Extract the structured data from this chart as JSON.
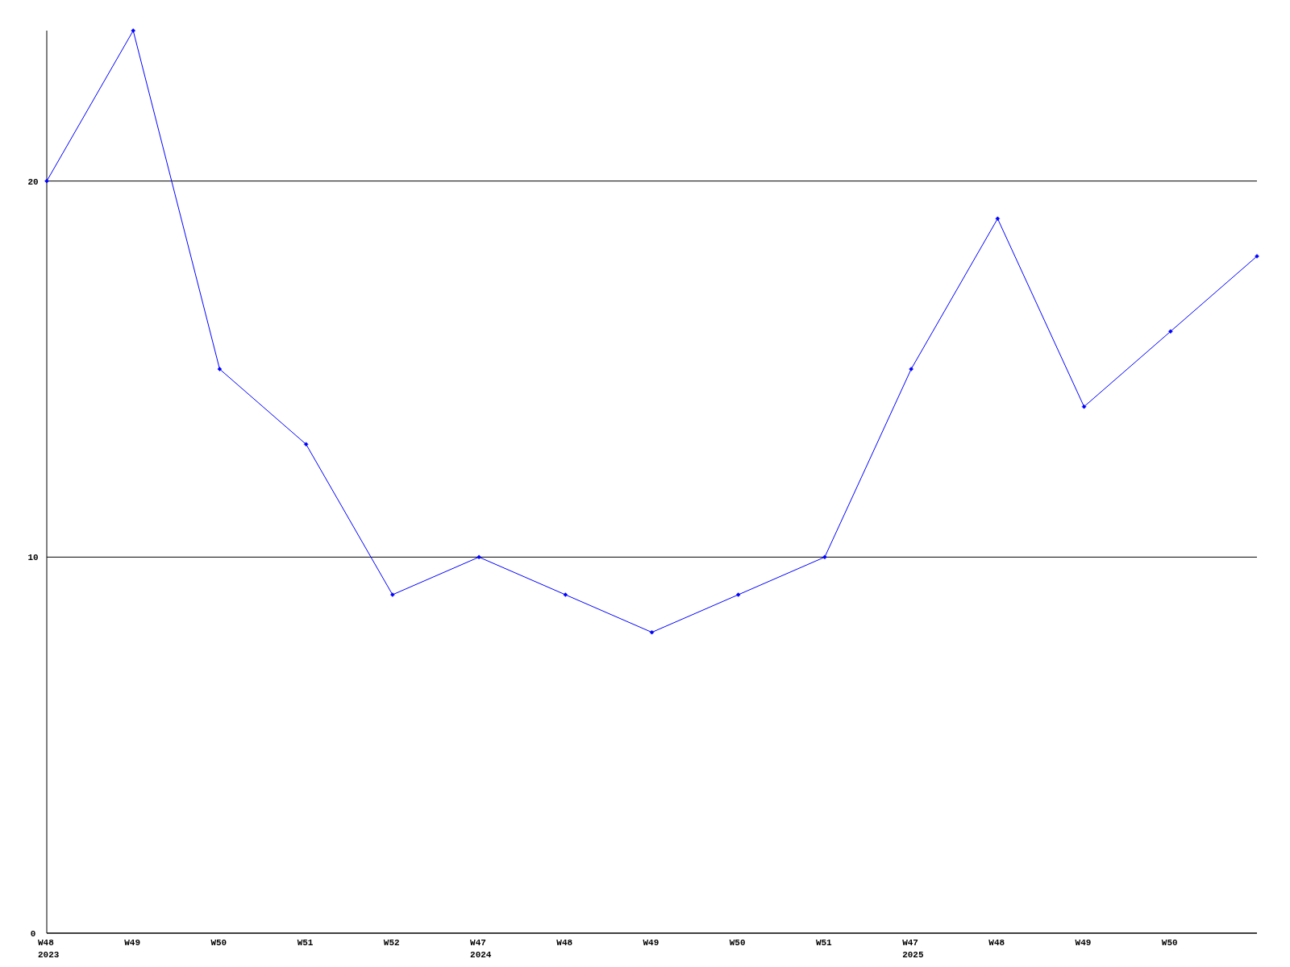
{
  "chart_data": {
    "type": "line",
    "categories": [
      "W48\n2023",
      "W49",
      "W50",
      "W51",
      "W52",
      "W47\n2024",
      "W48",
      "W49",
      "W50",
      "W51",
      "W47\n2025",
      "W48",
      "W49",
      "W50",
      null
    ],
    "series": [
      {
        "color": "#0000ff",
        "values": [
          20,
          24,
          15,
          13,
          9,
          10,
          9,
          8,
          9,
          10,
          15,
          19,
          14,
          16,
          18
        ]
      }
    ],
    "ylim": [
      0,
      24
    ],
    "yticks": [
      0,
      10,
      20
    ],
    "grid": "y",
    "marker": "diamond",
    "line_style": "solid"
  }
}
